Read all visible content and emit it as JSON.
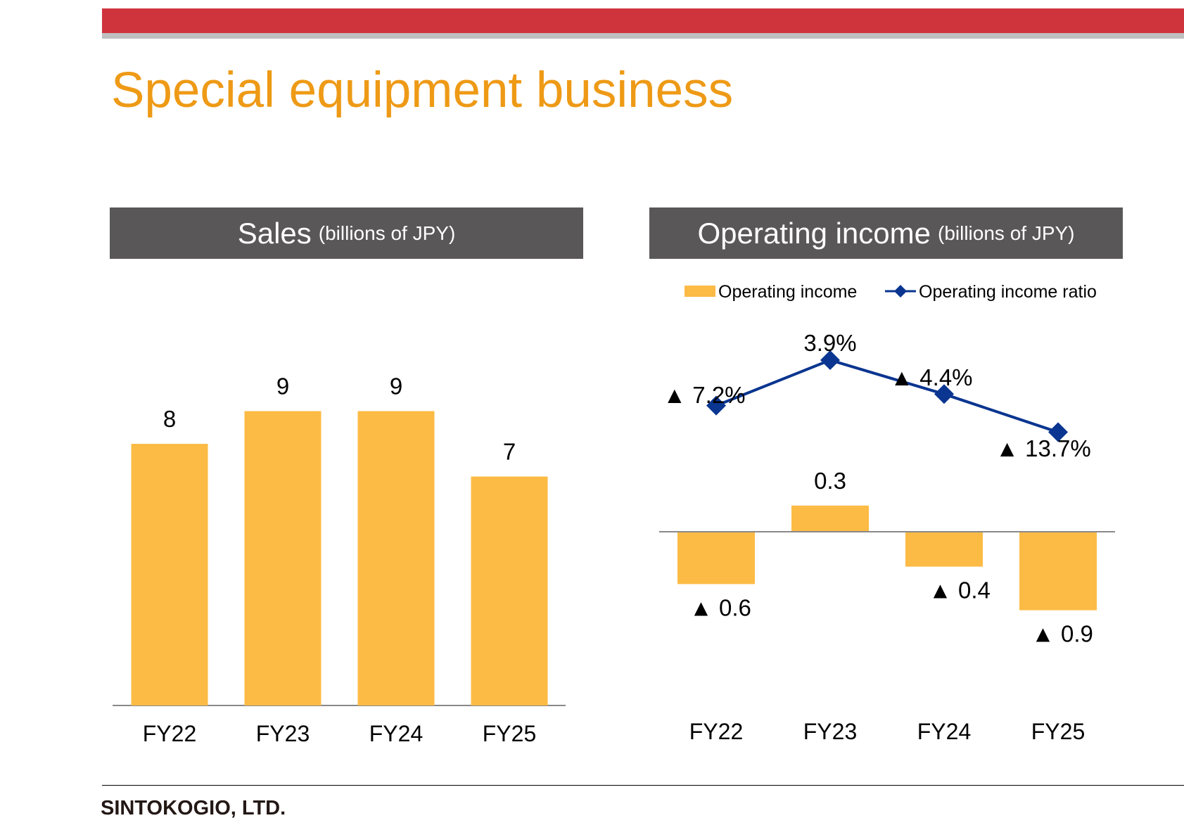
{
  "page": {
    "title": "Special equipment business",
    "company": "SINTOKOGIO, LTD."
  },
  "colors": {
    "top_bar": "#cf343d",
    "title": "#ee9a16",
    "header_bg": "#595757",
    "bar": "#fcbb45",
    "line": "#0a3590"
  },
  "chart_data": [
    {
      "type": "bar",
      "title": "Sales",
      "unit": "(billions of JPY)",
      "categories": [
        "FY22",
        "FY23",
        "FY24",
        "FY25"
      ],
      "values": [
        8,
        9,
        9,
        7
      ],
      "data_labels": [
        "8",
        "9",
        "9",
        "7"
      ],
      "value_precise": [
        8.0,
        9.0,
        9.0,
        7.0
      ],
      "ylim": [
        0,
        10
      ],
      "grid": false,
      "legend": "none"
    },
    {
      "type": "bar",
      "title": "Operating income",
      "unit": "(billions of JPY)",
      "legend": "top",
      "grid": false,
      "categories": [
        "FY22",
        "FY23",
        "FY24",
        "FY25"
      ],
      "series": [
        {
          "name": "Operating income",
          "type": "bar",
          "values": [
            -0.6,
            0.3,
            -0.4,
            -0.9
          ],
          "data_labels": [
            "▲ 0.6",
            "0.3",
            "▲ 0.4",
            "▲ 0.9"
          ]
        },
        {
          "name": "Operating income ratio",
          "type": "line",
          "marker": "diamond",
          "values": [
            -7.2,
            3.9,
            -4.4,
            -13.7
          ],
          "data_labels": [
            "▲ 7.2%",
            "3.9%",
            "▲ 4.4%",
            "▲ 13.7%"
          ]
        }
      ],
      "ylim": [
        -2,
        1.0
      ]
    }
  ]
}
